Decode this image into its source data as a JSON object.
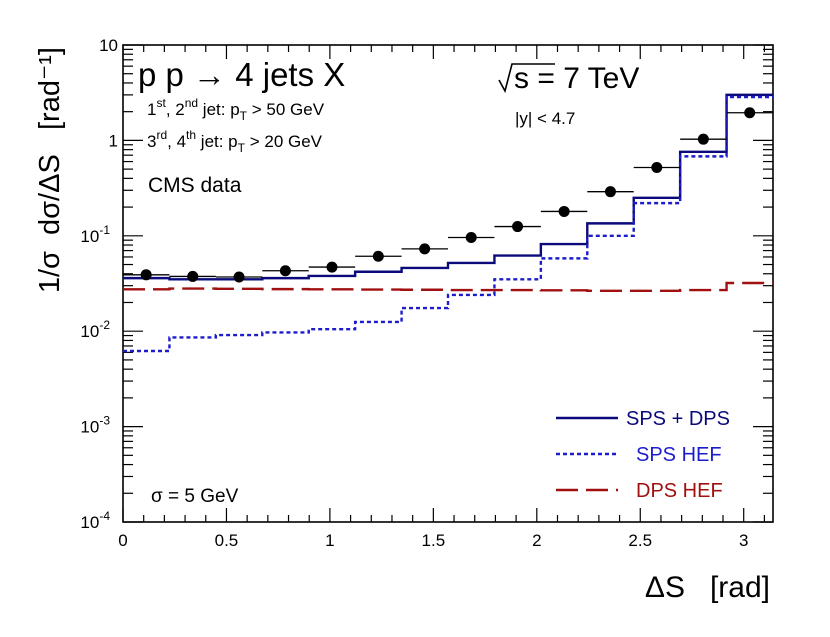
{
  "chart_data": {
    "type": "line",
    "title": "p p → 4 jets X",
    "xlabel": "ΔS   [rad]",
    "ylabel": "1/σ  dσ/ΔS   [rad⁻¹]",
    "xlim": [
      0,
      3.14159
    ],
    "ylim": [
      0.0001,
      10
    ],
    "yscale": "log",
    "x_ticks": [
      {
        "value": 0,
        "label": "0"
      },
      {
        "value": 0.5,
        "label": "0.5"
      },
      {
        "value": 1,
        "label": "1"
      },
      {
        "value": 1.5,
        "label": "1.5"
      },
      {
        "value": 2,
        "label": "2"
      },
      {
        "value": 2.5,
        "label": "2.5"
      },
      {
        "value": 3,
        "label": "3"
      }
    ],
    "y_ticks": [
      {
        "value": 10,
        "base": "10",
        "exp": ""
      },
      {
        "value": 1,
        "base": "1",
        "exp": ""
      },
      {
        "value": 0.1,
        "base": "10",
        "exp": "-1"
      },
      {
        "value": 0.01,
        "base": "10",
        "exp": "-2"
      },
      {
        "value": 0.001,
        "base": "10",
        "exp": "-3"
      },
      {
        "value": 0.0001,
        "base": "10",
        "exp": "-4"
      }
    ],
    "bin_edges": [
      0,
      0.2244,
      0.4488,
      0.6732,
      0.8976,
      1.122,
      1.3464,
      1.5708,
      1.7952,
      2.0196,
      2.244,
      2.4684,
      2.6928,
      2.9172,
      3.1416
    ],
    "data_points": {
      "name": "CMS data",
      "x": [
        0.112,
        0.337,
        0.561,
        0.785,
        1.01,
        1.234,
        1.458,
        1.683,
        1.907,
        2.132,
        2.356,
        2.58,
        2.805,
        3.029
      ],
      "y": [
        0.039,
        0.0375,
        0.037,
        0.043,
        0.047,
        0.061,
        0.073,
        0.096,
        0.125,
        0.18,
        0.29,
        0.52,
        1.03,
        1.95
      ]
    },
    "series": [
      {
        "name": "SPS + DPS",
        "style": "solid",
        "color": "#0a0a7a",
        "values": [
          0.036,
          0.035,
          0.035,
          0.036,
          0.038,
          0.042,
          0.046,
          0.052,
          0.062,
          0.082,
          0.135,
          0.25,
          0.76,
          3.0
        ]
      },
      {
        "name": "SPS HEF",
        "style": "dotted",
        "color": "#1c1ccc",
        "values": [
          0.0062,
          0.0086,
          0.0091,
          0.0097,
          0.0105,
          0.0125,
          0.0175,
          0.024,
          0.035,
          0.058,
          0.1,
          0.22,
          0.68,
          2.85
        ]
      },
      {
        "name": "DPS HEF",
        "style": "dashed",
        "color": "#a01010",
        "values": [
          0.0275,
          0.028,
          0.0278,
          0.0276,
          0.0275,
          0.0273,
          0.0272,
          0.027,
          0.027,
          0.0268,
          0.0265,
          0.0265,
          0.027,
          0.032
        ]
      }
    ],
    "annotations": {
      "sqrt_s": "s = 7 TeV",
      "rapidity": "|y| < 4.7",
      "cut1_a": "1",
      "cut1_a_sup": "st",
      "cut1_b": ", 2",
      "cut1_b_sup": "nd",
      "cut1_c": " jet: p",
      "cut1_c_sub": "T",
      "cut1_d": " > 50 GeV",
      "cut2_a": "3",
      "cut2_a_sup": "rd",
      "cut2_b": ", 4",
      "cut2_b_sup": "th",
      "cut2_c": " jet: p",
      "cut2_c_sub": "T",
      "cut2_d": " > 20 GeV",
      "data_label": "CMS data",
      "sigma": "σ = 5 GeV"
    },
    "legend_position": "bottom-right",
    "colors": {
      "axis": "#000000",
      "data": "#000000"
    }
  }
}
